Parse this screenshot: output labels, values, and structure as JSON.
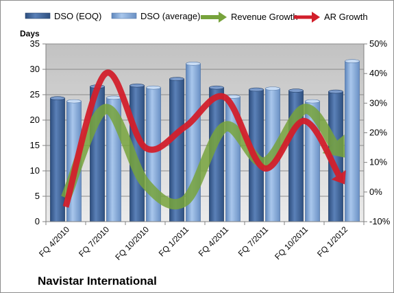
{
  "chart_data": {
    "type": "bar",
    "caption": "Navistar International",
    "ylabel": "Days",
    "categories": [
      "FQ 4/2010",
      "FQ 7/2010",
      "FQ 10/2010",
      "FQ 1/2011",
      "FQ 4/2011",
      "FQ 7/2011",
      "FQ 10/2011",
      "FQ 1/2012"
    ],
    "ylim": [
      0,
      35
    ],
    "yticks": [
      0,
      5,
      10,
      15,
      20,
      25,
      30,
      35
    ],
    "y2lim": [
      -10,
      50
    ],
    "y2ticks": [
      "-10%",
      "0%",
      "10%",
      "20%",
      "30%",
      "40%",
      "50%"
    ],
    "y2tick_values": [
      -10,
      0,
      10,
      20,
      30,
      40,
      50
    ],
    "grid": true,
    "legend_position": "top",
    "series": [
      {
        "name": "DSO (EOQ)",
        "kind": "bar",
        "axis": "left",
        "color": "#4a6fa5",
        "values": [
          24.3,
          26.6,
          26.8,
          28.1,
          26.4,
          26.0,
          25.8,
          25.6
        ]
      },
      {
        "name": "DSO (average)",
        "kind": "bar",
        "axis": "left",
        "color": "#8db4e2",
        "values": [
          23.7,
          24.4,
          26.4,
          31.1,
          24.6,
          26.2,
          23.7,
          31.6
        ]
      },
      {
        "name": "Revenue Growth",
        "kind": "line",
        "axis": "right",
        "color": "#77a33c",
        "values": [
          -2,
          28,
          3,
          -3,
          22,
          10,
          28,
          12
        ]
      },
      {
        "name": "AR Growth",
        "kind": "line",
        "axis": "right",
        "color": "#d21f2b",
        "values": [
          -5,
          40,
          15,
          22,
          32,
          8,
          24,
          3
        ]
      }
    ]
  }
}
